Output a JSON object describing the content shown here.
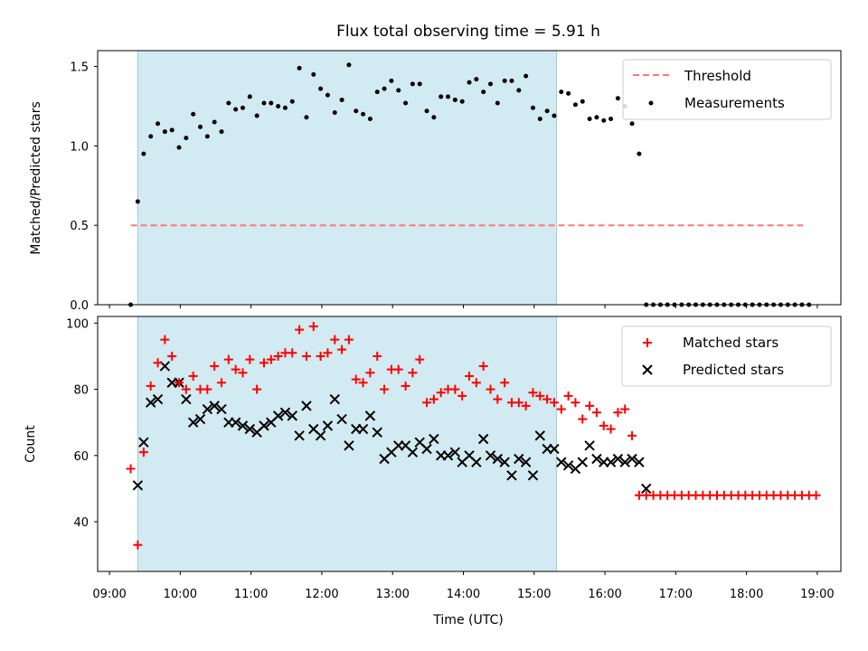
{
  "chart_data": [
    {
      "type": "scatter",
      "title": "Flux total observing time = 5.91 h",
      "xlabel": "",
      "ylabel": "Matched/Predicted stars",
      "xlim": [
        "08:50",
        "19:20"
      ],
      "ylim": [
        0,
        1.6
      ],
      "yticks": [
        0.0,
        0.5,
        1.0,
        1.5
      ],
      "ytick_labels": [
        "0.0",
        "0.5",
        "1.0",
        "1.5"
      ],
      "shaded_span": [
        "09:24",
        "15:19"
      ],
      "shaded_color": "#add8e6",
      "threshold": {
        "name": "Threshold",
        "value": 0.5,
        "x_range": [
          "09:18",
          "18:48"
        ],
        "color": "#ff7777"
      },
      "legend": {
        "placement": "top-right",
        "entries": [
          "Threshold",
          "Measurements"
        ]
      },
      "series": [
        {
          "name": "Measurements",
          "marker": "dot",
          "color": "#000000",
          "x": [
            "09:18",
            "09:24",
            "09:29",
            "09:35",
            "09:41",
            "09:47",
            "09:53",
            "09:59",
            "10:05",
            "10:11",
            "10:17",
            "10:23",
            "10:29",
            "10:35",
            "10:41",
            "10:47",
            "10:53",
            "10:59",
            "11:05",
            "11:11",
            "11:17",
            "11:23",
            "11:29",
            "11:35",
            "11:41",
            "11:47",
            "11:53",
            "11:59",
            "12:05",
            "12:11",
            "12:17",
            "12:23",
            "12:29",
            "12:35",
            "12:41",
            "12:47",
            "12:53",
            "12:59",
            "13:05",
            "13:11",
            "13:17",
            "13:23",
            "13:29",
            "13:35",
            "13:41",
            "13:47",
            "13:53",
            "13:59",
            "14:05",
            "14:11",
            "14:17",
            "14:23",
            "14:29",
            "14:35",
            "14:41",
            "14:47",
            "14:53",
            "14:59",
            "15:05",
            "15:11",
            "15:17",
            "15:23",
            "15:29",
            "15:35",
            "15:41",
            "15:47",
            "15:53",
            "15:59",
            "16:05",
            "16:11",
            "16:17",
            "16:23",
            "16:29",
            "16:35",
            "16:41",
            "16:47",
            "16:53",
            "16:59",
            "17:05",
            "17:11",
            "17:17",
            "17:23",
            "17:29",
            "17:35",
            "17:41",
            "17:47",
            "17:53",
            "17:59",
            "18:05",
            "18:11",
            "18:17",
            "18:23",
            "18:29",
            "18:35",
            "18:41",
            "18:47",
            "18:53"
          ],
          "y": [
            0.0,
            0.65,
            0.95,
            1.06,
            1.14,
            1.09,
            1.1,
            0.99,
            1.05,
            1.2,
            1.12,
            1.06,
            1.15,
            1.09,
            1.27,
            1.23,
            1.24,
            1.31,
            1.19,
            1.27,
            1.27,
            1.25,
            1.24,
            1.28,
            1.49,
            1.18,
            1.45,
            1.36,
            1.32,
            1.21,
            1.29,
            1.51,
            1.22,
            1.2,
            1.17,
            1.34,
            1.36,
            1.41,
            1.35,
            1.27,
            1.39,
            1.39,
            1.22,
            1.18,
            1.31,
            1.31,
            1.29,
            1.28,
            1.4,
            1.42,
            1.34,
            1.39,
            1.27,
            1.41,
            1.41,
            1.35,
            1.44,
            1.24,
            1.17,
            1.22,
            1.19,
            1.34,
            1.33,
            1.26,
            1.28,
            1.17,
            1.18,
            1.16,
            1.17,
            1.3,
            1.25,
            1.14,
            0.95,
            0.0,
            0.0,
            0.0,
            0.0,
            0.0,
            0.0,
            0.0,
            0.0,
            0.0,
            0.0,
            0.0,
            0.0,
            0.0,
            0.0,
            0.0,
            0.0,
            0.0,
            0.0,
            0.0,
            0.0,
            0.0,
            0.0,
            0.0,
            0.0
          ]
        }
      ]
    },
    {
      "type": "scatter",
      "title": "",
      "xlabel": "Time (UTC)",
      "ylabel": "Count",
      "xlim": [
        "08:50",
        "19:20"
      ],
      "ylim": [
        25,
        102
      ],
      "yticks": [
        40,
        60,
        80,
        100
      ],
      "ytick_labels": [
        "40",
        "60",
        "80",
        "100"
      ],
      "xticks": [
        "09:00",
        "10:00",
        "11:00",
        "12:00",
        "13:00",
        "14:00",
        "15:00",
        "16:00",
        "17:00",
        "18:00",
        "19:00"
      ],
      "shaded_span": [
        "09:24",
        "15:19"
      ],
      "shaded_color": "#add8e6",
      "legend": {
        "placement": "top-right",
        "entries": [
          "Matched stars",
          "Predicted stars"
        ]
      },
      "series": [
        {
          "name": "Matched stars",
          "marker": "plus",
          "color": "#ff0000",
          "points": [
            [
              "09:18",
              56
            ],
            [
              "09:24",
              33
            ],
            [
              "09:29",
              61
            ],
            [
              "09:35",
              81
            ],
            [
              "09:41",
              88
            ],
            [
              "09:47",
              95
            ],
            [
              "09:53",
              90
            ],
            [
              "09:59",
              82
            ],
            [
              "10:05",
              80
            ],
            [
              "10:11",
              84
            ],
            [
              "10:17",
              80
            ],
            [
              "10:23",
              80
            ],
            [
              "10:29",
              87
            ],
            [
              "10:35",
              82
            ],
            [
              "10:41",
              89
            ],
            [
              "10:47",
              86
            ],
            [
              "10:53",
              85
            ],
            [
              "10:59",
              89
            ],
            [
              "11:05",
              80
            ],
            [
              "11:11",
              88
            ],
            [
              "11:17",
              89
            ],
            [
              "11:23",
              90
            ],
            [
              "11:29",
              91
            ],
            [
              "11:35",
              91
            ],
            [
              "11:41",
              98
            ],
            [
              "11:47",
              90
            ],
            [
              "11:53",
              99
            ],
            [
              "11:59",
              90
            ],
            [
              "12:05",
              91
            ],
            [
              "12:11",
              95
            ],
            [
              "12:17",
              92
            ],
            [
              "12:23",
              95
            ],
            [
              "12:29",
              83
            ],
            [
              "12:35",
              82
            ],
            [
              "12:41",
              85
            ],
            [
              "12:47",
              90
            ],
            [
              "12:53",
              80
            ],
            [
              "12:59",
              86
            ],
            [
              "13:05",
              86
            ],
            [
              "13:11",
              81
            ],
            [
              "13:17",
              85
            ],
            [
              "13:23",
              89
            ],
            [
              "13:29",
              76
            ],
            [
              "13:35",
              77
            ],
            [
              "13:41",
              79
            ],
            [
              "13:47",
              80
            ],
            [
              "13:53",
              80
            ],
            [
              "13:59",
              78
            ],
            [
              "14:05",
              84
            ],
            [
              "14:11",
              82
            ],
            [
              "14:17",
              87
            ],
            [
              "14:23",
              80
            ],
            [
              "14:29",
              77
            ],
            [
              "14:35",
              82
            ],
            [
              "14:41",
              76
            ],
            [
              "14:47",
              76
            ],
            [
              "14:53",
              75
            ],
            [
              "14:59",
              79
            ],
            [
              "15:05",
              78
            ],
            [
              "15:11",
              77
            ],
            [
              "15:17",
              76
            ],
            [
              "15:23",
              74
            ],
            [
              "15:29",
              78
            ],
            [
              "15:35",
              76
            ],
            [
              "15:41",
              71
            ],
            [
              "15:47",
              75
            ],
            [
              "15:53",
              73
            ],
            [
              "15:59",
              69
            ],
            [
              "16:05",
              68
            ],
            [
              "16:11",
              73
            ],
            [
              "16:17",
              74
            ],
            [
              "16:23",
              66
            ],
            [
              "16:29",
              48
            ]
          ],
          "extra_points": [
            [
              "16:35",
              48
            ],
            [
              "16:41",
              48
            ],
            [
              "16:47",
              48
            ],
            [
              "16:53",
              48
            ],
            [
              "16:59",
              48
            ],
            [
              "17:05",
              48
            ],
            [
              "17:11",
              48
            ],
            [
              "17:17",
              48
            ],
            [
              "17:23",
              48
            ],
            [
              "17:29",
              48
            ],
            [
              "17:35",
              48
            ],
            [
              "17:41",
              48
            ],
            [
              "17:47",
              48
            ],
            [
              "17:53",
              48
            ],
            [
              "17:59",
              48
            ],
            [
              "18:05",
              48
            ],
            [
              "18:11",
              48
            ],
            [
              "18:17",
              48
            ],
            [
              "18:23",
              48
            ],
            [
              "18:29",
              48
            ],
            [
              "18:35",
              48
            ],
            [
              "18:41",
              48
            ],
            [
              "18:47",
              48
            ],
            [
              "18:53",
              48
            ],
            [
              "18:59",
              48
            ]
          ]
        },
        {
          "name": "Predicted stars",
          "marker": "x",
          "color": "#000000",
          "points": []
        }
      ]
    }
  ]
}
